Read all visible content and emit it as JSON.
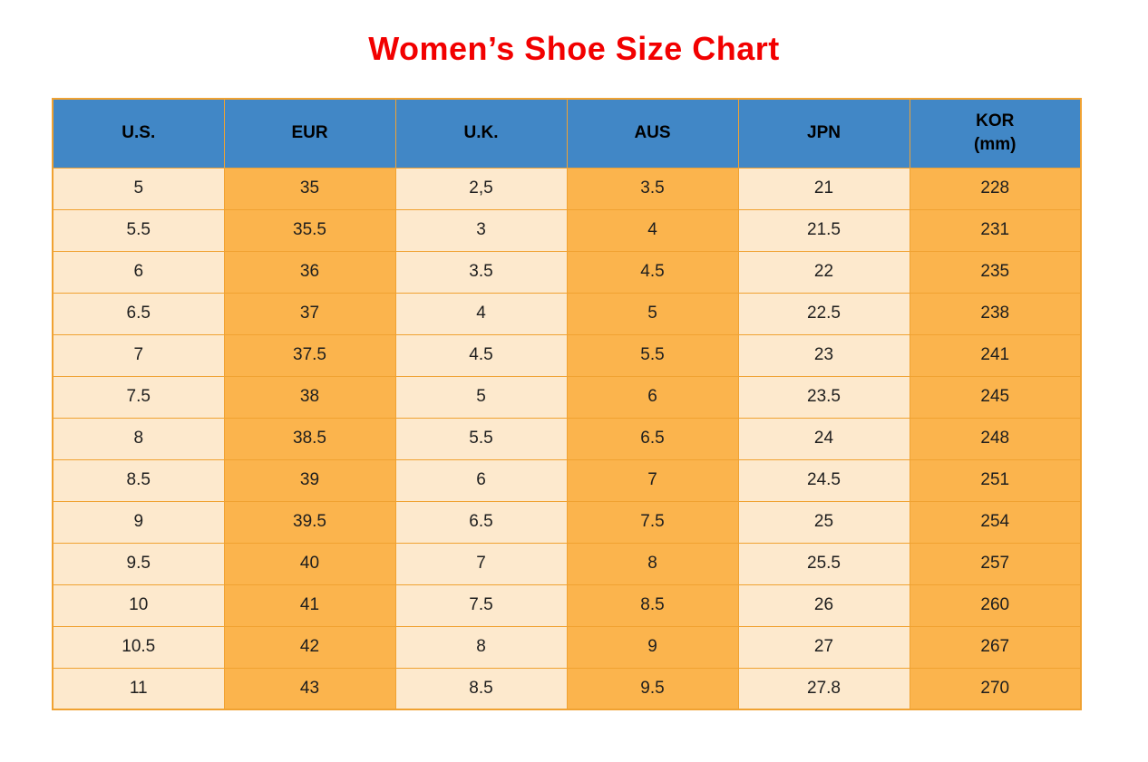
{
  "page": {
    "title": "Women’s Shoe Size Chart"
  },
  "colors": {
    "title": "#f20000",
    "header_bg": "#4187c6",
    "header_text": "#000000",
    "col_light": "#fde9cd",
    "col_orange": "#fbb44d",
    "border": "#f0a232",
    "cell_text": "#1e1e1e",
    "page_bg": "#ffffff"
  },
  "table": {
    "headers": [
      "U.S.",
      "EUR",
      "U.K.",
      "AUS",
      "JPN",
      "KOR\n(mm)"
    ]
  },
  "chart_data": {
    "type": "table",
    "title": "Women’s Shoe Size Chart",
    "columns": [
      "U.S.",
      "EUR",
      "U.K.",
      "AUS",
      "JPN",
      "KOR (mm)"
    ],
    "rows": [
      [
        "5",
        "35",
        "2,5",
        "3.5",
        "21",
        "228"
      ],
      [
        "5.5",
        "35.5",
        "3",
        "4",
        "21.5",
        "231"
      ],
      [
        "6",
        "36",
        "3.5",
        "4.5",
        "22",
        "235"
      ],
      [
        "6.5",
        "37",
        "4",
        "5",
        "22.5",
        "238"
      ],
      [
        "7",
        "37.5",
        "4.5",
        "5.5",
        "23",
        "241"
      ],
      [
        "7.5",
        "38",
        "5",
        "6",
        "23.5",
        "245"
      ],
      [
        "8",
        "38.5",
        "5.5",
        "6.5",
        "24",
        "248"
      ],
      [
        "8.5",
        "39",
        "6",
        "7",
        "24.5",
        "251"
      ],
      [
        "9",
        "39.5",
        "6.5",
        "7.5",
        "25",
        "254"
      ],
      [
        "9.5",
        "40",
        "7",
        "8",
        "25.5",
        "257"
      ],
      [
        "10",
        "41",
        "7.5",
        "8.5",
        "26",
        "260"
      ],
      [
        "10.5",
        "42",
        "8",
        "9",
        "27",
        "267"
      ],
      [
        "11",
        "43",
        "8.5",
        "9.5",
        "27.8",
        "270"
      ]
    ]
  }
}
